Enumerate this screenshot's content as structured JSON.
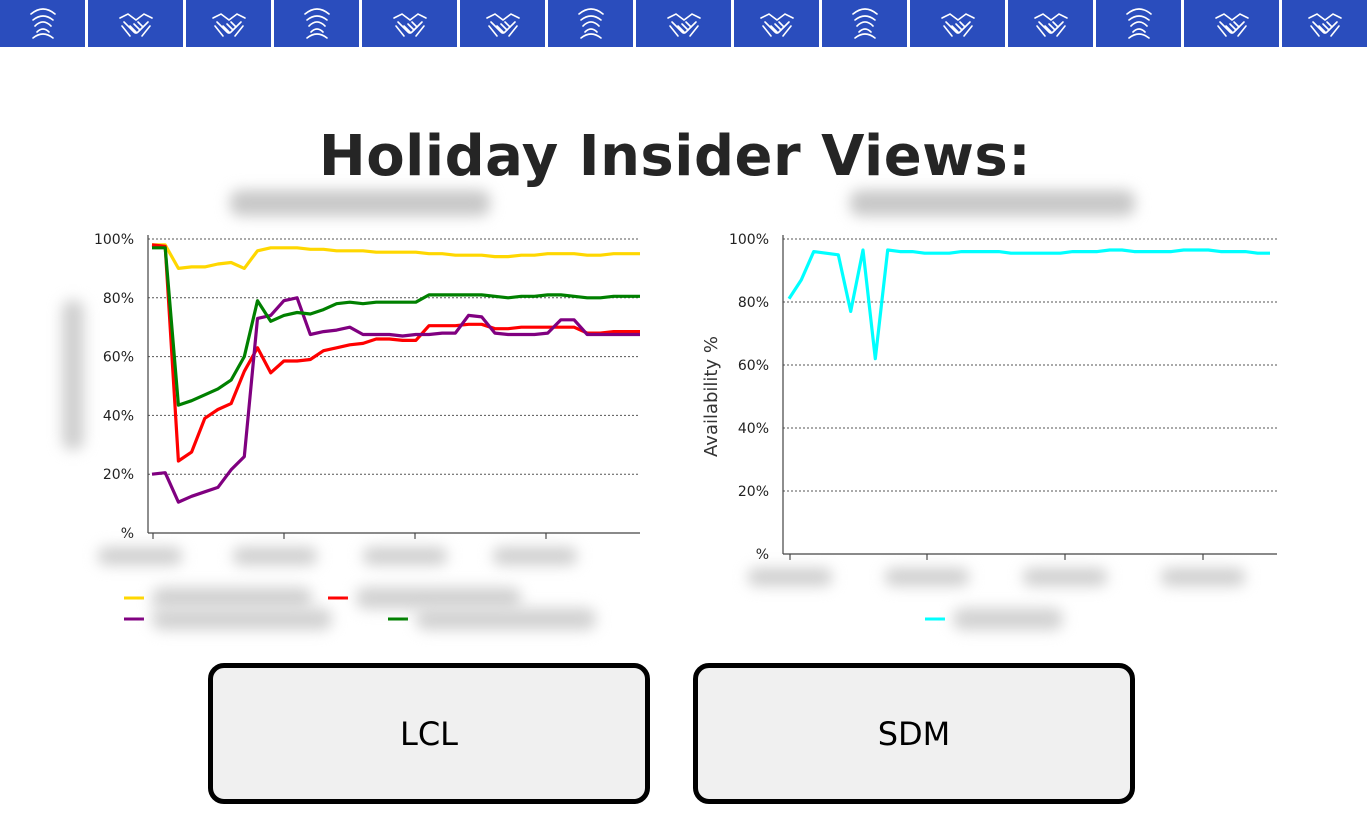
{
  "page": {
    "title": "Holiday Insider Views:"
  },
  "banner": {
    "tiles": [
      "fingerprint-icon",
      "handshake-icon",
      "handshake-icon",
      "fingerprint-icon",
      "handshake-icon",
      "handshake-icon",
      "fingerprint-icon",
      "handshake-icon",
      "handshake-icon",
      "fingerprint-icon",
      "handshake-icon",
      "handshake-icon",
      "fingerprint-icon",
      "handshake-icon",
      "handshake-icon"
    ],
    "color": "#2a4dbd"
  },
  "buttons": {
    "lcl": "LCL",
    "sdm": "SDM"
  },
  "chart_data": [
    {
      "type": "line",
      "title": "",
      "xlabel": "",
      "ylabel": "",
      "ylim": [
        0,
        100
      ],
      "yticks": [
        "%",
        "20%",
        "40%",
        "60%",
        "80%",
        "100%"
      ],
      "grid": true,
      "legend": "bottom",
      "series": [
        {
          "color": "#ffd700",
          "values": [
            98,
            98,
            90,
            90.5,
            90.5,
            91.5,
            92,
            90,
            96,
            97,
            97,
            97,
            96.5,
            96.5,
            96,
            96,
            96,
            95.5,
            95.5,
            95.5,
            95.5,
            95,
            95,
            94.5,
            94.5,
            94.5,
            94,
            94,
            94.5,
            94.5,
            95,
            95,
            95,
            94.5,
            94.5,
            95,
            95,
            95
          ]
        },
        {
          "color": "#ff0000",
          "values": [
            98,
            97.5,
            24.5,
            27.5,
            39,
            42,
            44,
            55,
            63,
            54.5,
            58.5,
            58.5,
            59,
            62,
            63,
            64,
            64.5,
            66,
            66,
            65.5,
            65.5,
            70.5,
            70.5,
            70.5,
            71,
            71,
            69.5,
            69.5,
            70,
            70,
            70,
            70,
            70,
            68,
            68,
            68.5,
            68.5,
            68.5
          ]
        },
        {
          "color": "#800080",
          "values": [
            20,
            20.5,
            10.5,
            12.5,
            14,
            15.5,
            21.5,
            26,
            73,
            74,
            79,
            80,
            67.5,
            68.5,
            69,
            70,
            67.5,
            67.5,
            67.5,
            67,
            67.5,
            67.5,
            68,
            68,
            74,
            73.5,
            68,
            67.5,
            67.5,
            67.5,
            68,
            72.5,
            72.5,
            67.5,
            67.5,
            67.5,
            67.5,
            67.5
          ]
        },
        {
          "color": "#008000",
          "values": [
            97,
            97,
            43.5,
            45,
            47,
            49,
            52,
            60,
            79,
            72,
            74,
            75,
            74.5,
            76,
            78,
            78.5,
            78,
            78.5,
            78.5,
            78.5,
            78.5,
            81,
            81,
            81,
            81,
            81,
            80.5,
            80,
            80.5,
            80.5,
            81,
            81,
            80.5,
            80,
            80,
            80.5,
            80.5,
            80.5
          ]
        }
      ]
    },
    {
      "type": "line",
      "title": "",
      "xlabel": "",
      "ylabel": "Availability %",
      "ylim": [
        0,
        100
      ],
      "yticks": [
        "%",
        "20%",
        "40%",
        "60%",
        "80%",
        "100%"
      ],
      "grid": true,
      "legend": "bottom",
      "series": [
        {
          "color": "#00ffff",
          "values": [
            81,
            87,
            96,
            95.5,
            95,
            77,
            96.5,
            62,
            96.5,
            96,
            96,
            95.5,
            95.5,
            95.5,
            96,
            96,
            96,
            96,
            95.5,
            95.5,
            95.5,
            95.5,
            95.5,
            96,
            96,
            96,
            96.5,
            96.5,
            96,
            96,
            96,
            96,
            96.5,
            96.5,
            96.5,
            96,
            96,
            96,
            95.5,
            95.5
          ]
        }
      ]
    }
  ]
}
